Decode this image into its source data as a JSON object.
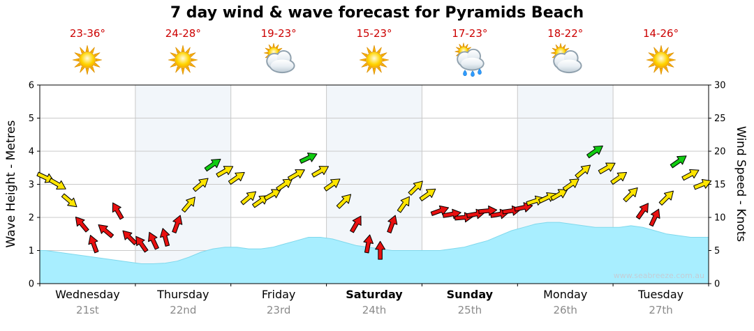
{
  "title": "7 day wind & wave forecast for Pyramids Beach",
  "watermark": "www.seabreeze.com.au",
  "axes": {
    "left_label": "Wave Height - Metres",
    "right_label": "Wind Speed - Knots"
  },
  "days": [
    {
      "name": "Wednesday",
      "date": "21st",
      "temp": "23-36°",
      "icon": "sunny",
      "bold": false
    },
    {
      "name": "Thursday",
      "date": "22nd",
      "temp": "24-28°",
      "icon": "sunny",
      "bold": false
    },
    {
      "name": "Friday",
      "date": "23rd",
      "temp": "19-23°",
      "icon": "partly-cloudy",
      "bold": false
    },
    {
      "name": "Saturday",
      "date": "24th",
      "temp": "15-23°",
      "icon": "sunny",
      "bold": true
    },
    {
      "name": "Sunday",
      "date": "25th",
      "temp": "17-23°",
      "icon": "showers",
      "bold": true
    },
    {
      "name": "Monday",
      "date": "26th",
      "temp": "18-22°",
      "icon": "partly-cloudy",
      "bold": false
    },
    {
      "name": "Tuesday",
      "date": "27th",
      "temp": "14-26°",
      "icon": "sunny",
      "bold": false
    }
  ],
  "chart_data": {
    "type": "area+wind-arrows",
    "categories": [
      "Wednesday 21st",
      "Thursday 22nd",
      "Friday 23rd",
      "Saturday 24th",
      "Sunday 25th",
      "Monday 26th",
      "Tuesday 27th"
    ],
    "samples_per_day": 8,
    "wave_height_m": {
      "label": "Wave Height - Metres",
      "range": [
        0,
        6
      ],
      "ticks": [
        0,
        1,
        2,
        3,
        4,
        5,
        6
      ],
      "values": [
        1.0,
        0.95,
        0.9,
        0.85,
        0.8,
        0.75,
        0.7,
        0.65,
        0.6,
        0.6,
        0.62,
        0.68,
        0.8,
        0.95,
        1.05,
        1.1,
        1.1,
        1.05,
        1.05,
        1.1,
        1.2,
        1.3,
        1.4,
        1.4,
        1.35,
        1.25,
        1.15,
        1.1,
        1.05,
        1.0,
        1.0,
        1.0,
        1.0,
        1.0,
        1.05,
        1.1,
        1.2,
        1.3,
        1.45,
        1.6,
        1.7,
        1.8,
        1.85,
        1.85,
        1.8,
        1.75,
        1.7,
        1.7,
        1.7,
        1.75,
        1.7,
        1.6,
        1.5,
        1.45,
        1.4,
        1.4
      ]
    },
    "wind_speed_knots": {
      "label": "Wind Speed - Knots",
      "range": [
        0,
        30
      ],
      "ticks": [
        0,
        5,
        10,
        15,
        20,
        25,
        30
      ],
      "values": [
        16,
        15,
        12.5,
        9,
        6,
        8,
        11,
        7,
        6,
        6.5,
        7,
        9,
        12,
        15,
        18,
        17,
        16,
        13,
        12.5,
        13.5,
        15,
        16.5,
        19,
        17,
        15,
        12.5,
        9,
        6,
        5,
        9,
        12,
        14.5,
        13.5,
        11,
        10.5,
        10,
        10.5,
        11,
        10.5,
        11,
        11.5,
        12.5,
        13,
        13.5,
        15,
        17,
        20,
        17.5,
        16,
        13.5,
        11,
        10,
        13,
        18.5,
        16.5,
        15
      ],
      "directions_deg": [
        25,
        30,
        40,
        -130,
        -110,
        -140,
        -120,
        -135,
        -125,
        -115,
        -105,
        -70,
        -50,
        -40,
        -35,
        -30,
        -35,
        -40,
        -35,
        -30,
        -35,
        -30,
        -25,
        -30,
        -35,
        -45,
        -60,
        -80,
        -90,
        -70,
        -55,
        -45,
        -35,
        -20,
        -10,
        -5,
        -10,
        -5,
        -10,
        -8,
        -12,
        -18,
        -25,
        -30,
        -35,
        -40,
        -35,
        -30,
        -35,
        -45,
        -55,
        -65,
        -45,
        -35,
        -28,
        -22
      ],
      "colors": [
        "y",
        "y",
        "y",
        "r",
        "r",
        "r",
        "r",
        "r",
        "r",
        "r",
        "r",
        "r",
        "y",
        "y",
        "g",
        "y",
        "y",
        "y",
        "y",
        "y",
        "y",
        "y",
        "g",
        "y",
        "y",
        "y",
        "r",
        "r",
        "r",
        "r",
        "y",
        "y",
        "y",
        "r",
        "r",
        "r",
        "r",
        "r",
        "r",
        "r",
        "r",
        "y",
        "y",
        "y",
        "y",
        "y",
        "g",
        "y",
        "y",
        "y",
        "r",
        "r",
        "y",
        "g",
        "y",
        "y"
      ]
    }
  },
  "colors": {
    "temp_text": "#cc0000",
    "date_text": "#8a8a8a",
    "wave_fill": "#a8eeff",
    "wave_edge": "#7fd8ec",
    "gridline": "#c9c9c9",
    "day_band": "#ffffff",
    "day_band_alt": "#f2f6fa",
    "watermark": "#c3cdd6",
    "rain": "#2f9bff",
    "arrow": {
      "y": "#ffe500",
      "r": "#e81010",
      "g": "#11cc11"
    }
  }
}
